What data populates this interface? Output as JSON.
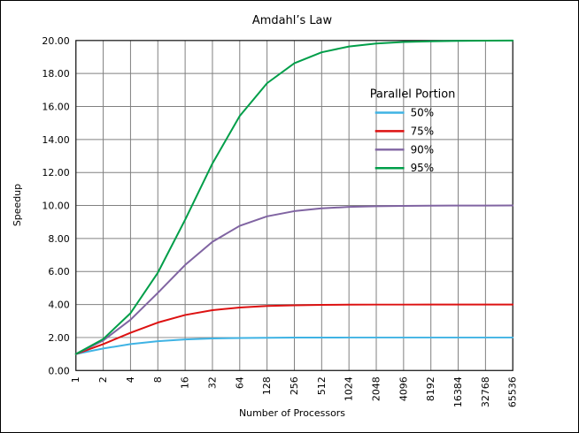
{
  "chart_data": {
    "type": "line",
    "title": "Amdahl’s Law",
    "xlabel": "Number of Processors",
    "ylabel": "Speedup",
    "legend_title": "Parallel Portion",
    "legend_position": "inside-upper-middle",
    "grid": true,
    "x_scale": "log2",
    "ylim": [
      0,
      20
    ],
    "x_ticks": [
      "1",
      "2",
      "4",
      "8",
      "16",
      "32",
      "64",
      "128",
      "256",
      "512",
      "1024",
      "2048",
      "4096",
      "8192",
      "16384",
      "32768",
      "65536"
    ],
    "y_ticks": [
      "0.00",
      "2.00",
      "4.00",
      "6.00",
      "8.00",
      "10.00",
      "12.00",
      "14.00",
      "16.00",
      "18.00",
      "20.00"
    ],
    "x_values": [
      1,
      2,
      4,
      8,
      16,
      32,
      64,
      128,
      256,
      512,
      1024,
      2048,
      4096,
      8192,
      16384,
      32768,
      65536
    ],
    "series": [
      {
        "name": "50%",
        "color": "#3fb3e4",
        "values": [
          1.0,
          1.333,
          1.6,
          1.778,
          1.882,
          1.939,
          1.969,
          1.984,
          1.992,
          1.996,
          1.998,
          1.999,
          2.0,
          2.0,
          2.0,
          2.0,
          2.0
        ]
      },
      {
        "name": "75%",
        "color": "#dd1111",
        "values": [
          1.0,
          1.6,
          2.286,
          2.909,
          3.368,
          3.657,
          3.82,
          3.908,
          3.953,
          3.977,
          3.988,
          3.994,
          3.997,
          3.999,
          3.999,
          4.0,
          4.0
        ]
      },
      {
        "name": "90%",
        "color": "#8064a2",
        "values": [
          1.0,
          1.818,
          3.077,
          4.706,
          6.4,
          7.805,
          8.767,
          9.343,
          9.661,
          9.827,
          9.913,
          9.956,
          9.978,
          9.989,
          9.995,
          9.997,
          9.999
        ]
      },
      {
        "name": "95%",
        "color": "#009e49",
        "values": [
          1.0,
          1.905,
          3.478,
          5.926,
          9.143,
          12.549,
          15.422,
          17.415,
          18.618,
          19.283,
          19.636,
          19.817,
          19.908,
          19.954,
          19.977,
          19.988,
          19.994
        ]
      }
    ],
    "colors": {
      "grid": "#808080",
      "plot_border": "#1a1a1a",
      "background": "#ffffff"
    }
  }
}
